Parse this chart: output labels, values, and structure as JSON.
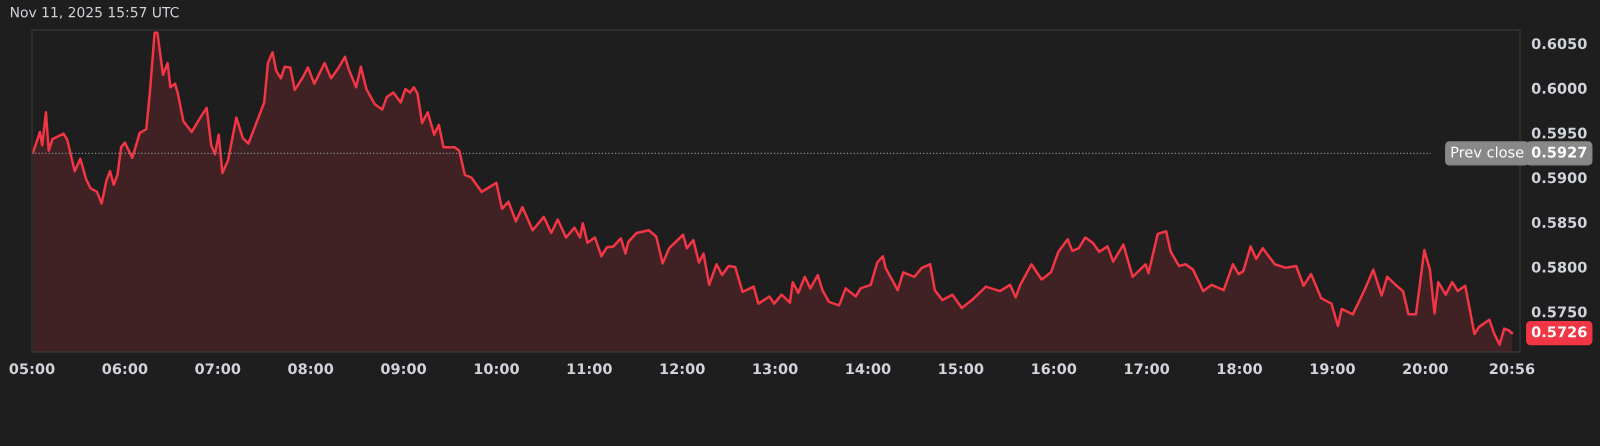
{
  "chart_data": {
    "type": "area",
    "title": "Nov 11, 2025 15:57 UTC",
    "x": [
      5.012,
      5.085,
      5.11,
      5.15,
      5.18,
      5.22,
      5.34,
      5.38,
      5.46,
      5.52,
      5.58,
      5.63,
      5.7,
      5.75,
      5.8,
      5.84,
      5.88,
      5.92,
      5.96,
      6.0,
      6.08,
      6.16,
      6.23,
      6.27,
      6.32,
      6.35,
      6.41,
      6.46,
      6.49,
      6.54,
      6.57,
      6.63,
      6.72,
      6.8,
      6.88,
      6.93,
      6.97,
      7.01,
      7.05,
      7.11,
      7.2,
      7.27,
      7.33,
      7.43,
      7.5,
      7.54,
      7.59,
      7.63,
      7.68,
      7.72,
      7.78,
      7.83,
      7.91,
      7.97,
      8.04,
      8.15,
      8.22,
      8.29,
      8.37,
      8.41,
      8.49,
      8.54,
      8.6,
      8.69,
      8.77,
      8.82,
      8.89,
      8.97,
      9.02,
      9.07,
      9.11,
      9.15,
      9.2,
      9.26,
      9.33,
      9.38,
      9.43,
      9.55,
      9.6,
      9.66,
      9.73,
      9.84,
      9.92,
      10.0,
      10.06,
      10.13,
      10.21,
      10.28,
      10.39,
      10.51,
      10.59,
      10.66,
      10.75,
      10.84,
      10.9,
      10.93,
      10.98,
      11.06,
      11.13,
      11.19,
      11.26,
      11.34,
      11.39,
      11.42,
      11.51,
      11.64,
      11.72,
      11.79,
      11.86,
      12.01,
      12.05,
      12.12,
      12.18,
      12.23,
      12.29,
      12.37,
      12.43,
      12.5,
      12.57,
      12.65,
      12.77,
      12.82,
      12.94,
      12.99,
      13.07,
      13.16,
      13.19,
      13.25,
      13.32,
      13.38,
      13.46,
      13.51,
      13.58,
      13.69,
      13.76,
      13.87,
      13.92,
      14.03,
      14.1,
      14.16,
      14.19,
      14.32,
      14.38,
      14.5,
      14.58,
      14.67,
      14.72,
      14.8,
      14.91,
      15.01,
      15.12,
      15.27,
      15.42,
      15.53,
      15.59,
      15.64,
      15.76,
      15.87,
      15.97,
      16.05,
      16.15,
      16.2,
      16.27,
      16.34,
      16.42,
      16.49,
      16.58,
      16.64,
      16.75,
      16.85,
      16.91,
      16.99,
      17.02,
      17.12,
      17.21,
      17.26,
      17.35,
      17.42,
      17.5,
      17.61,
      17.7,
      17.83,
      17.93,
      17.99,
      18.04,
      18.12,
      18.18,
      18.25,
      18.38,
      18.5,
      18.61,
      18.69,
      18.77,
      18.88,
      18.99,
      19.06,
      19.1,
      19.22,
      19.35,
      19.44,
      19.53,
      19.59,
      19.67,
      19.76,
      19.82,
      19.9,
      19.99,
      20.05,
      20.1,
      20.14,
      20.22,
      20.29,
      20.35,
      20.43,
      20.53,
      20.58,
      20.69,
      20.74,
      20.8,
      20.85,
      20.9,
      20.933
    ],
    "series": [
      {
        "color": "#f23645",
        "values": [
          0.5928,
          0.5951,
          0.5936,
          0.5973,
          0.593,
          0.5943,
          0.5949,
          0.5942,
          0.5907,
          0.5921,
          0.5899,
          0.5888,
          0.5884,
          0.5871,
          0.5896,
          0.5907,
          0.5892,
          0.5903,
          0.5934,
          0.5939,
          0.5922,
          0.595,
          0.5954,
          0.5996,
          0.6062,
          0.6062,
          0.6015,
          0.6028,
          0.6001,
          0.6005,
          0.5994,
          0.5963,
          0.5951,
          0.5965,
          0.5978,
          0.5936,
          0.5926,
          0.5948,
          0.5905,
          0.5919,
          0.5967,
          0.5944,
          0.5938,
          0.5965,
          0.5984,
          0.6028,
          0.604,
          0.6019,
          0.6011,
          0.6024,
          0.6023,
          0.5998,
          0.6011,
          0.6023,
          0.6005,
          0.6028,
          0.6011,
          0.6021,
          0.6035,
          0.6021,
          0.6001,
          0.6024,
          0.5999,
          0.5982,
          0.5976,
          0.599,
          0.5995,
          0.5984,
          0.5999,
          0.5995,
          0.6001,
          0.5994,
          0.5961,
          0.5973,
          0.5948,
          0.5959,
          0.5934,
          0.5934,
          0.593,
          0.5903,
          0.59,
          0.5884,
          0.5889,
          0.5894,
          0.5865,
          0.5873,
          0.5851,
          0.5867,
          0.5841,
          0.5856,
          0.5838,
          0.5853,
          0.5833,
          0.5844,
          0.5833,
          0.5849,
          0.5827,
          0.5833,
          0.5812,
          0.5822,
          0.5823,
          0.5832,
          0.5815,
          0.5828,
          0.5838,
          0.5841,
          0.5834,
          0.5804,
          0.5821,
          0.5836,
          0.5821,
          0.583,
          0.5805,
          0.5815,
          0.578,
          0.5803,
          0.5791,
          0.5801,
          0.58,
          0.5772,
          0.5778,
          0.5759,
          0.5767,
          0.5759,
          0.5769,
          0.576,
          0.5783,
          0.5771,
          0.5789,
          0.5776,
          0.5791,
          0.5774,
          0.5761,
          0.5757,
          0.5776,
          0.5767,
          0.5776,
          0.578,
          0.5805,
          0.5812,
          0.5799,
          0.5774,
          0.5794,
          0.5789,
          0.5799,
          0.5803,
          0.5774,
          0.5763,
          0.5769,
          0.5754,
          0.5763,
          0.5778,
          0.5773,
          0.578,
          0.5766,
          0.578,
          0.5803,
          0.5786,
          0.5794,
          0.5817,
          0.5831,
          0.5818,
          0.5821,
          0.5833,
          0.5827,
          0.5817,
          0.5823,
          0.5806,
          0.5825,
          0.5789,
          0.5795,
          0.5803,
          0.5793,
          0.5837,
          0.584,
          0.5817,
          0.5801,
          0.5803,
          0.5797,
          0.5773,
          0.578,
          0.5774,
          0.5803,
          0.5792,
          0.5795,
          0.5823,
          0.5809,
          0.5821,
          0.5803,
          0.5799,
          0.5801,
          0.5779,
          0.5792,
          0.5765,
          0.5759,
          0.5734,
          0.5753,
          0.5747,
          0.5775,
          0.5797,
          0.5768,
          0.5789,
          0.5781,
          0.5773,
          0.5747,
          0.5747,
          0.5819,
          0.5797,
          0.5748,
          0.5783,
          0.5769,
          0.5783,
          0.5773,
          0.5779,
          0.5725,
          0.5733,
          0.5741,
          0.5726,
          0.5713,
          0.5731,
          0.5729,
          0.5726
        ]
      }
    ],
    "xlim": [
      5.0,
      21.02
    ],
    "xticks": [
      {
        "value": 5,
        "label": "05:00"
      },
      {
        "value": 6,
        "label": "06:00"
      },
      {
        "value": 7,
        "label": "07:00"
      },
      {
        "value": 8,
        "label": "08:00"
      },
      {
        "value": 9,
        "label": "09:00"
      },
      {
        "value": 10,
        "label": "10:00"
      },
      {
        "value": 11,
        "label": "11:00"
      },
      {
        "value": 12,
        "label": "12:00"
      },
      {
        "value": 13,
        "label": "13:00"
      },
      {
        "value": 14,
        "label": "14:00"
      },
      {
        "value": 15,
        "label": "15:00"
      },
      {
        "value": 16,
        "label": "16:00"
      },
      {
        "value": 17,
        "label": "17:00"
      },
      {
        "value": 18,
        "label": "18:00"
      },
      {
        "value": 19,
        "label": "19:00"
      },
      {
        "value": 20,
        "label": "20:00"
      },
      {
        "value": 20.933,
        "label": "20:56"
      }
    ],
    "ylim": [
      0.5705,
      0.6065
    ],
    "yticks": [
      {
        "value": 0.575,
        "label": "0.5750"
      },
      {
        "value": 0.58,
        "label": "0.5800"
      },
      {
        "value": 0.585,
        "label": "0.5850"
      },
      {
        "value": 0.59,
        "label": "0.5900"
      },
      {
        "value": 0.595,
        "label": "0.5950"
      },
      {
        "value": 0.6,
        "label": "0.6000"
      },
      {
        "value": 0.605,
        "label": "0.6050"
      }
    ],
    "ref_lines": [
      {
        "axis": "y",
        "value": 0.5927,
        "label": "Prev close",
        "color": "#888888",
        "line_style": "dotted"
      }
    ],
    "annotations": [
      "0.5927",
      "0.5726"
    ],
    "grid": false,
    "legend": false
  }
}
